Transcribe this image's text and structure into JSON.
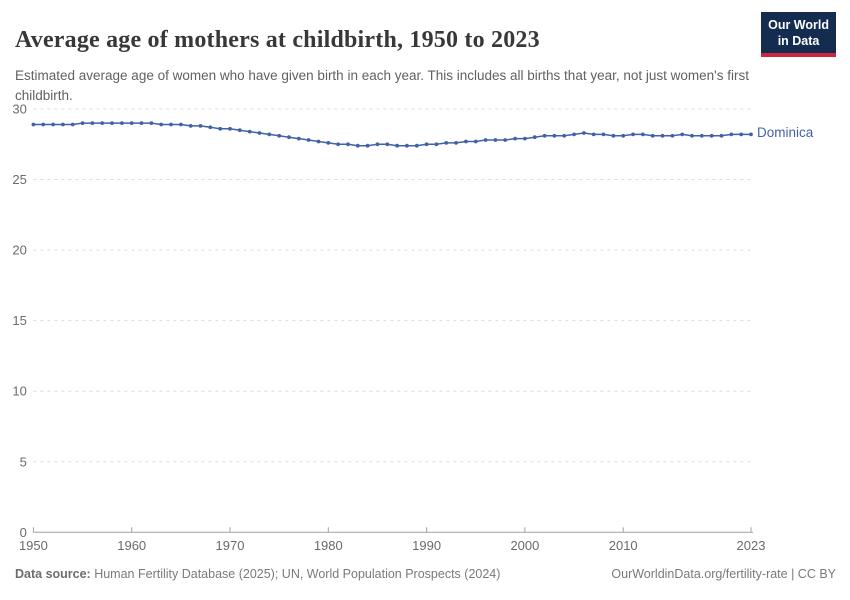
{
  "header": {
    "title": "Average age of mothers at childbirth, 1950 to 2023",
    "subtitle": "Estimated average age of women who have given birth in each year. This includes all births that year, not just women's first childbirth.",
    "logo": {
      "line1": "Our World",
      "line2": "in Data",
      "bg_color": "#132c4f",
      "accent_color": "#cf2540"
    }
  },
  "chart_data": {
    "type": "line",
    "title": "Average age of mothers at childbirth, 1950 to 2023",
    "xlabel": "",
    "ylabel": "",
    "xlim": [
      1950,
      2023
    ],
    "ylim": [
      0,
      30
    ],
    "xticks": [
      1950,
      1960,
      1970,
      1980,
      1990,
      2000,
      2010,
      2023
    ],
    "yticks": [
      0,
      5,
      10,
      15,
      20,
      25,
      30
    ],
    "grid": "horizontal-dashed",
    "legend_position": "end-of-line",
    "x": [
      1950,
      1951,
      1952,
      1953,
      1954,
      1955,
      1956,
      1957,
      1958,
      1959,
      1960,
      1961,
      1962,
      1963,
      1964,
      1965,
      1966,
      1967,
      1968,
      1969,
      1970,
      1971,
      1972,
      1973,
      1974,
      1975,
      1976,
      1977,
      1978,
      1979,
      1980,
      1981,
      1982,
      1983,
      1984,
      1985,
      1986,
      1987,
      1988,
      1989,
      1990,
      1991,
      1992,
      1993,
      1994,
      1995,
      1996,
      1997,
      1998,
      1999,
      2000,
      2001,
      2002,
      2003,
      2004,
      2005,
      2006,
      2007,
      2008,
      2009,
      2010,
      2011,
      2012,
      2013,
      2014,
      2015,
      2016,
      2017,
      2018,
      2019,
      2020,
      2021,
      2022,
      2023
    ],
    "series": [
      {
        "name": "Dominica",
        "color": "#4262a8",
        "values": [
          28.9,
          28.9,
          28.9,
          28.9,
          28.9,
          29.0,
          29.0,
          29.0,
          29.0,
          29.0,
          29.0,
          29.0,
          29.0,
          28.9,
          28.9,
          28.9,
          28.8,
          28.8,
          28.7,
          28.6,
          28.6,
          28.5,
          28.4,
          28.3,
          28.2,
          28.1,
          28.0,
          27.9,
          27.8,
          27.7,
          27.6,
          27.5,
          27.5,
          27.4,
          27.4,
          27.5,
          27.5,
          27.4,
          27.4,
          27.4,
          27.5,
          27.5,
          27.6,
          27.6,
          27.7,
          27.7,
          27.8,
          27.8,
          27.8,
          27.9,
          27.9,
          28.0,
          28.1,
          28.1,
          28.1,
          28.2,
          28.3,
          28.2,
          28.2,
          28.1,
          28.1,
          28.2,
          28.2,
          28.1,
          28.1,
          28.1,
          28.2,
          28.1,
          28.1,
          28.1,
          28.1,
          28.2,
          28.2,
          28.2
        ]
      }
    ],
    "styles": {
      "grid_color": "#dcdcdc",
      "axis_color": "#a1a1a1",
      "tick_label_color": "#6b6b6b"
    }
  },
  "footer": {
    "source_label": "Data source:",
    "source_text": " Human Fertility Database (2025); UN, World Population Prospects (2024)",
    "credit": "OurWorldinData.org/fertility-rate | CC BY"
  }
}
